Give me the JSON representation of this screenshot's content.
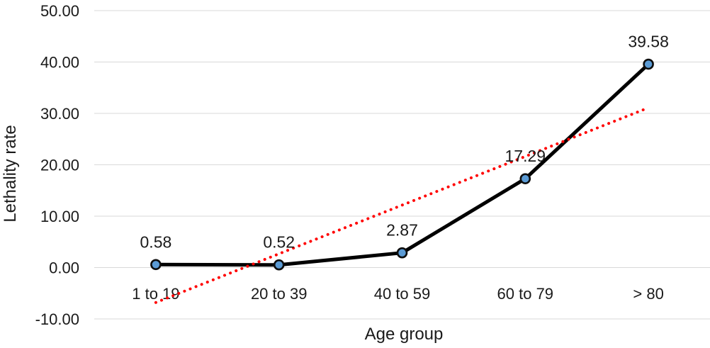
{
  "chart_data": {
    "type": "line",
    "title": "",
    "xlabel": "Age group",
    "ylabel": "Lethality rate",
    "categories": [
      "1 to 19",
      "20 to 39",
      "40 to 59",
      "60 to 79",
      "> 80"
    ],
    "series": [
      {
        "name": "Lethality rate",
        "values": [
          0.58,
          0.52,
          2.87,
          17.29,
          39.58
        ],
        "data_labels": [
          "0.58",
          "0.52",
          "2.87",
          "17.29",
          "39.58"
        ],
        "line_color": "#000000",
        "marker_fill": "#5B9BD5",
        "marker_border": "#0d0d0d"
      }
    ],
    "trendline": {
      "type": "linear",
      "style": "dotted",
      "color": "#FF0000",
      "value_at_first_category": -6.8,
      "value_at_last_category": 31.1
    },
    "ylim": [
      -10,
      50
    ],
    "yticks": [
      {
        "value": 50,
        "label": "50.00"
      },
      {
        "value": 40,
        "label": "40.00"
      },
      {
        "value": 30,
        "label": "30.00"
      },
      {
        "value": 20,
        "label": "20.00"
      },
      {
        "value": 10,
        "label": "10.00"
      },
      {
        "value": 0,
        "label": "0.00"
      },
      {
        "value": -10,
        "label": "-10.00"
      }
    ],
    "grid": "horizontal",
    "gridline_color": "#D9D9D9",
    "text_color": "#1a1a1a",
    "legend": "none",
    "background": "#FFFFFF"
  }
}
